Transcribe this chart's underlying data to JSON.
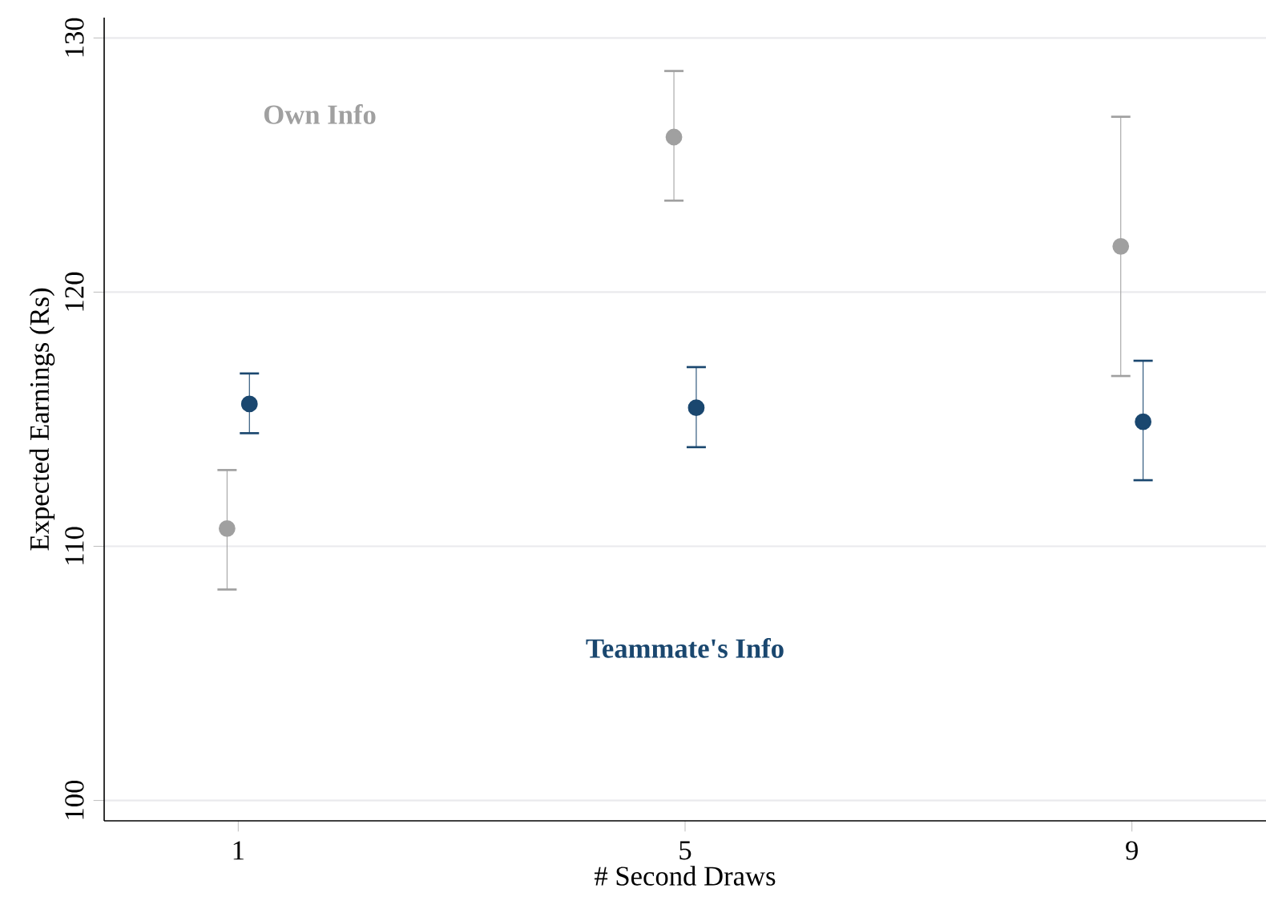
{
  "chart_data": {
    "type": "scatter",
    "xlabel": "# Second Draws",
    "ylabel": "Expected Earnings (Rs)",
    "xlim": [
      -0.2,
      10.2
    ],
    "ylim": [
      99.2,
      130.8
    ],
    "xticks": [
      1,
      5,
      9
    ],
    "yticks": [
      100,
      110,
      120,
      130
    ],
    "grid": "y",
    "marker": "circle",
    "legend": false,
    "series": [
      {
        "name": "Own Info",
        "color": "#a0a0a0",
        "x": [
          0.9,
          4.9,
          8.9
        ],
        "values": [
          110.7,
          126.1,
          121.8
        ],
        "errors": [
          [
            108.3,
            113.0
          ],
          [
            123.6,
            128.7
          ],
          [
            116.7,
            126.9
          ]
        ]
      },
      {
        "name": "Teammate's Info",
        "color": "#1a476f",
        "x": [
          1.1,
          5.1,
          9.1
        ],
        "values": [
          115.6,
          115.45,
          114.9
        ],
        "errors": [
          [
            114.45,
            116.8
          ],
          [
            113.9,
            117.05
          ],
          [
            112.6,
            117.3
          ]
        ]
      }
    ]
  }
}
